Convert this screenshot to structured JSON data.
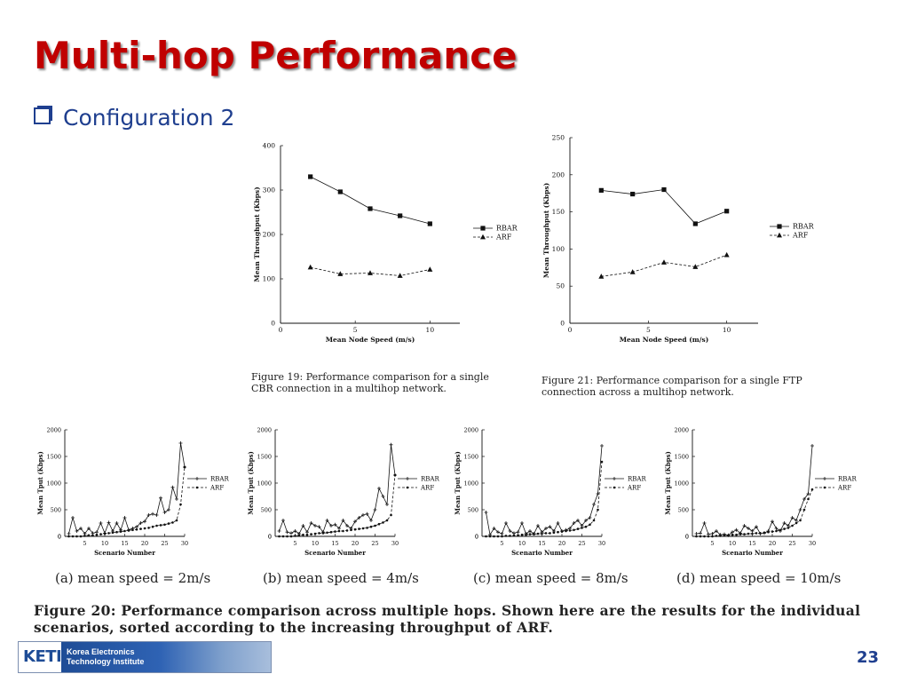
{
  "slide": {
    "title": "Multi-hop Performance",
    "bullet": "Configuration 2",
    "page_number": "23",
    "logo": {
      "mark": "KETI",
      "name_line1": "Korea Electronics",
      "name_line2": "Technology Institute"
    },
    "captions": {
      "fig19": "Figure 19: Performance comparison for a single CBR connection in a multihop network.",
      "fig21": "Figure 21: Performance comparison for a single FTP connection across a multihop network.",
      "fig20": "Figure 20: Performance comparison across multiple hops. Shown here are the results for the individual scenarios, sorted according to the increasing throughput of ARF.",
      "sub_a": "(a) mean speed = 2m/s",
      "sub_b": "(b) mean speed = 4m/s",
      "sub_c": "(c) mean speed = 8m/s",
      "sub_d": "(d) mean speed = 10m/s"
    }
  },
  "chart_data": [
    {
      "id": "fig19",
      "type": "line",
      "xlabel": "Mean Node Speed (m/s)",
      "ylabel": "Mean Throughput (Kbps)",
      "xlim": [
        0,
        12
      ],
      "ylim": [
        0,
        400
      ],
      "xticks": [
        0,
        5,
        10
      ],
      "yticks": [
        0,
        100,
        200,
        300,
        400
      ],
      "x": [
        2,
        4,
        6,
        8,
        10
      ],
      "series": [
        {
          "name": "RBAR",
          "values": [
            330,
            296,
            258,
            242,
            224
          ]
        },
        {
          "name": "ARF",
          "values": [
            126,
            111,
            113,
            107,
            121
          ]
        }
      ],
      "legend": "right"
    },
    {
      "id": "fig21",
      "type": "line",
      "xlabel": "Mean Node Speed (m/s)",
      "ylabel": "Mean Throughput (Kbps)",
      "xlim": [
        0,
        12
      ],
      "ylim": [
        0,
        250
      ],
      "xticks": [
        0,
        5,
        10
      ],
      "yticks": [
        0,
        50,
        100,
        150,
        200,
        250
      ],
      "x": [
        2,
        4,
        6,
        8,
        10
      ],
      "series": [
        {
          "name": "RBAR",
          "values": [
            179,
            174,
            180,
            134,
            151
          ]
        },
        {
          "name": "ARF",
          "values": [
            63,
            69,
            82,
            76,
            92
          ]
        }
      ],
      "legend": "right"
    },
    {
      "id": "fig20a",
      "type": "line",
      "xlabel": "Scenario Number",
      "ylabel": "Mean Tput (Kbps)",
      "xlim": [
        0,
        30
      ],
      "ylim": [
        0,
        2000
      ],
      "xticks": [
        5,
        10,
        15,
        20,
        25,
        30
      ],
      "yticks": [
        0,
        500,
        1000,
        1500,
        2000
      ],
      "x": [
        1,
        2,
        3,
        4,
        5,
        6,
        7,
        8,
        9,
        10,
        11,
        12,
        13,
        14,
        15,
        16,
        17,
        18,
        19,
        20,
        21,
        22,
        23,
        24,
        25,
        26,
        27,
        28,
        29,
        30
      ],
      "series": [
        {
          "name": "RBAR",
          "values": [
            50,
            350,
            100,
            150,
            50,
            150,
            60,
            80,
            250,
            60,
            260,
            100,
            250,
            120,
            350,
            120,
            150,
            180,
            250,
            280,
            400,
            420,
            400,
            720,
            450,
            500,
            920,
            700,
            1750,
            1300
          ]
        },
        {
          "name": "ARF",
          "values": [
            0,
            0,
            0,
            0,
            10,
            20,
            20,
            30,
            40,
            50,
            60,
            70,
            80,
            90,
            100,
            110,
            120,
            130,
            140,
            150,
            160,
            180,
            200,
            210,
            220,
            240,
            260,
            300,
            600,
            1300
          ]
        }
      ],
      "legend": "right"
    },
    {
      "id": "fig20b",
      "type": "line",
      "xlabel": "Scenario Number",
      "ylabel": "Mean Tput (Kbps)",
      "xlim": [
        0,
        30
      ],
      "ylim": [
        0,
        2000
      ],
      "xticks": [
        5,
        10,
        15,
        20,
        25,
        30
      ],
      "yticks": [
        0,
        500,
        1000,
        1500,
        2000
      ],
      "x": [
        1,
        2,
        3,
        4,
        5,
        6,
        7,
        8,
        9,
        10,
        11,
        12,
        13,
        14,
        15,
        16,
        17,
        18,
        19,
        20,
        21,
        22,
        23,
        24,
        25,
        26,
        27,
        28,
        29,
        30
      ],
      "series": [
        {
          "name": "RBAR",
          "values": [
            100,
            300,
            80,
            60,
            100,
            50,
            200,
            80,
            250,
            200,
            180,
            80,
            300,
            200,
            220,
            150,
            300,
            200,
            150,
            280,
            350,
            400,
            420,
            300,
            500,
            900,
            750,
            600,
            1720,
            1150
          ]
        },
        {
          "name": "ARF",
          "values": [
            0,
            0,
            0,
            0,
            10,
            20,
            30,
            30,
            40,
            50,
            60,
            60,
            70,
            80,
            90,
            100,
            100,
            110,
            120,
            130,
            140,
            150,
            160,
            180,
            200,
            230,
            260,
            300,
            400,
            1150
          ]
        }
      ],
      "legend": "right"
    },
    {
      "id": "fig20c",
      "type": "line",
      "xlabel": "Scenario Number",
      "ylabel": "Mean Tput (Kbps)",
      "xlim": [
        0,
        30
      ],
      "ylim": [
        0,
        2000
      ],
      "xticks": [
        5,
        10,
        15,
        20,
        25,
        30
      ],
      "yticks": [
        0,
        500,
        1000,
        1500,
        2000
      ],
      "x": [
        1,
        2,
        3,
        4,
        5,
        6,
        7,
        8,
        9,
        10,
        11,
        12,
        13,
        14,
        15,
        16,
        17,
        18,
        19,
        20,
        21,
        22,
        23,
        24,
        25,
        26,
        27,
        28,
        29,
        30
      ],
      "series": [
        {
          "name": "RBAR",
          "values": [
            450,
            30,
            150,
            80,
            50,
            250,
            100,
            60,
            80,
            250,
            50,
            100,
            50,
            200,
            80,
            150,
            180,
            100,
            250,
            100,
            120,
            150,
            250,
            300,
            200,
            300,
            350,
            600,
            800,
            1700
          ]
        },
        {
          "name": "ARF",
          "values": [
            0,
            0,
            0,
            0,
            0,
            10,
            10,
            20,
            20,
            30,
            30,
            40,
            40,
            50,
            50,
            60,
            60,
            70,
            80,
            90,
            100,
            110,
            120,
            140,
            160,
            180,
            220,
            300,
            500,
            1400
          ]
        }
      ],
      "legend": "right"
    },
    {
      "id": "fig20d",
      "type": "line",
      "xlabel": "Scenario Number",
      "ylabel": "Mean Tput (Kbps)",
      "xlim": [
        0,
        30
      ],
      "ylim": [
        0,
        2000
      ],
      "xticks": [
        5,
        10,
        15,
        20,
        25,
        30
      ],
      "yticks": [
        0,
        500,
        1000,
        1500,
        2000
      ],
      "x": [
        1,
        2,
        3,
        4,
        5,
        6,
        7,
        8,
        9,
        10,
        11,
        12,
        13,
        14,
        15,
        16,
        17,
        18,
        19,
        20,
        21,
        22,
        23,
        24,
        25,
        26,
        27,
        28,
        29,
        30
      ],
      "series": [
        {
          "name": "RBAR",
          "values": [
            50,
            60,
            250,
            40,
            50,
            100,
            30,
            40,
            20,
            80,
            120,
            60,
            200,
            150,
            100,
            180,
            50,
            60,
            100,
            280,
            150,
            100,
            250,
            200,
            350,
            300,
            500,
            700,
            800,
            1700
          ]
        },
        {
          "name": "ARF",
          "values": [
            0,
            0,
            0,
            0,
            0,
            10,
            10,
            20,
            20,
            30,
            30,
            40,
            40,
            50,
            50,
            60,
            60,
            70,
            80,
            90,
            100,
            120,
            140,
            160,
            200,
            250,
            300,
            500,
            700,
            880
          ]
        }
      ],
      "legend": "right"
    }
  ]
}
